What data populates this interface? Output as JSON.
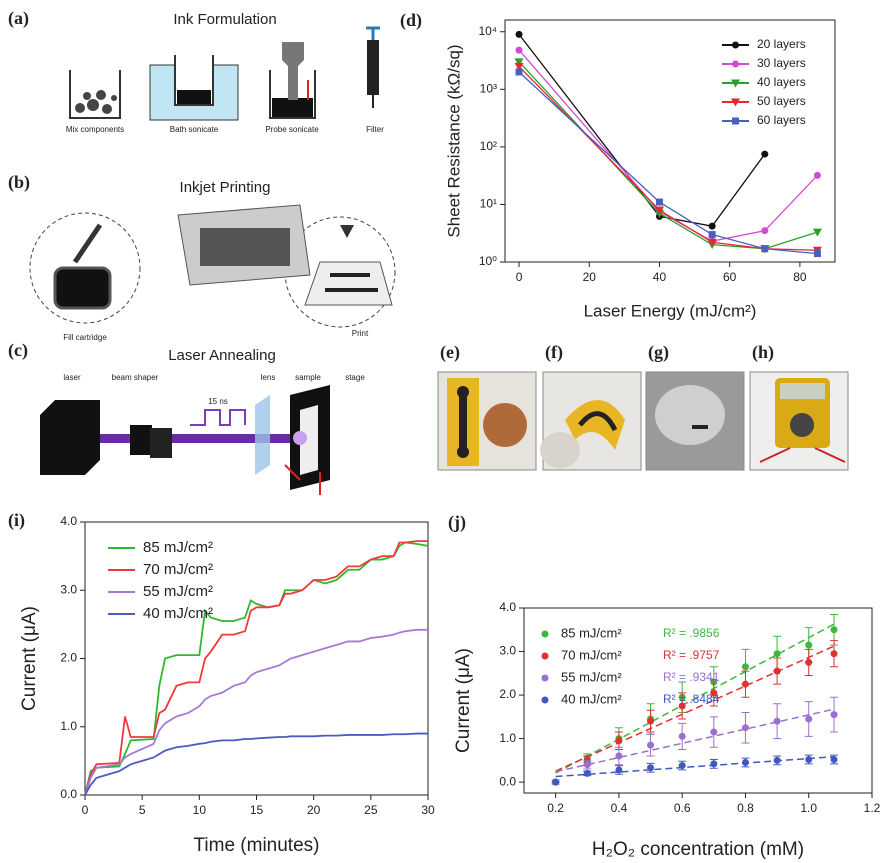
{
  "panel_labels": [
    "(a)",
    "(b)",
    "(c)",
    "(d)",
    "(e)",
    "(f)",
    "(g)",
    "(h)",
    "(i)",
    "(j)"
  ],
  "diagrams": [
    {
      "title": "Ink Formulation",
      "labels": [
        "Mix components",
        "Bath sonicate",
        "Probe sonicate",
        "Filter"
      ]
    },
    {
      "title": "Inkjet Printing",
      "labels": [
        "Fill cartridge",
        "Print"
      ]
    },
    {
      "title": "Laser Annealing",
      "labels": [
        "laser",
        "beam shaper",
        "15 ns",
        "lens",
        "sample",
        "stage"
      ]
    }
  ],
  "chart_data": [
    {
      "type": "line",
      "log_y": true,
      "markers": [
        "circle",
        "circle",
        "triangle-down",
        "triangle-down",
        "square"
      ],
      "ylabel": "Sheet Resistance (kΩ/sq)",
      "xlabel": "Laser Energy (mJ/cm²)",
      "legend": "upper-right",
      "x": [
        0,
        40,
        55,
        70,
        85
      ],
      "series": [
        {
          "name": "20 layers",
          "color": "#111111",
          "values": [
            9000,
            6.2,
            4.2,
            75,
            null
          ]
        },
        {
          "name": "30 layers",
          "color": "#d24bd2",
          "values": [
            4800,
            7.5,
            2.3,
            3.5,
            32
          ]
        },
        {
          "name": "40 layers",
          "color": "#2ca02c",
          "values": [
            3000,
            7,
            2.0,
            1.7,
            3.3
          ]
        },
        {
          "name": "50 layers",
          "color": "#e8262b",
          "values": [
            2500,
            8,
            2.2,
            1.7,
            1.6
          ]
        },
        {
          "name": "60 layers",
          "color": "#4a5fc4",
          "values": [
            2000,
            11,
            3.0,
            1.7,
            1.4
          ]
        }
      ],
      "xlim": [
        -4,
        90
      ],
      "ylim": [
        1,
        16000
      ],
      "xticks": [
        0,
        20,
        40,
        60,
        80
      ],
      "yticks": [
        {
          "value": 1,
          "label": "10⁰"
        },
        {
          "value": 10,
          "label": "10¹"
        },
        {
          "value": 100,
          "label": "10²"
        },
        {
          "value": 1000,
          "label": "10³"
        },
        {
          "value": 10000,
          "label": "10⁴"
        }
      ]
    },
    {
      "type": "line",
      "ylabel": "Current (μA)",
      "xlabel": "Time (minutes)",
      "legend": "upper-left",
      "x": [
        0,
        0.5,
        1,
        3,
        3.5,
        4,
        6,
        6.5,
        7,
        8,
        9,
        10,
        10.5,
        11,
        12,
        13,
        14,
        14.5,
        15,
        16,
        17,
        17.5,
        18,
        19,
        20,
        21,
        22,
        23,
        24,
        25,
        26,
        27,
        27.5,
        28,
        29,
        30
      ],
      "series": [
        {
          "name": "85 mJ/cm²",
          "color": "#2fb82f",
          "values": [
            0,
            0.35,
            0.4,
            0.42,
            0.6,
            0.8,
            0.82,
            1.6,
            2.0,
            2.05,
            2.05,
            2.05,
            2.7,
            2.6,
            2.55,
            2.55,
            2.6,
            2.85,
            2.8,
            2.75,
            2.78,
            3.0,
            3.0,
            3.0,
            3.15,
            3.1,
            3.15,
            3.3,
            3.3,
            3.45,
            3.45,
            3.5,
            3.65,
            3.7,
            3.68,
            3.65
          ]
        },
        {
          "name": "70 mJ/cm²",
          "color": "#ee3b3b",
          "values": [
            0,
            0.3,
            0.45,
            0.47,
            1.15,
            0.85,
            0.85,
            1.2,
            1.25,
            1.6,
            1.65,
            1.65,
            2.0,
            2.1,
            2.35,
            2.35,
            2.4,
            2.7,
            2.75,
            2.75,
            2.78,
            2.95,
            2.95,
            3.0,
            3.15,
            3.15,
            3.2,
            3.35,
            3.35,
            3.45,
            3.5,
            3.5,
            3.7,
            3.7,
            3.72,
            3.72
          ]
        },
        {
          "name": "55 mJ/cm²",
          "color": "#a67ad6",
          "values": [
            0,
            0.25,
            0.4,
            0.45,
            0.55,
            0.6,
            0.75,
            0.95,
            1.05,
            1.15,
            1.2,
            1.3,
            1.4,
            1.45,
            1.5,
            1.6,
            1.65,
            1.75,
            1.8,
            1.85,
            1.9,
            1.95,
            2.0,
            2.05,
            2.1,
            2.15,
            2.2,
            2.25,
            2.25,
            2.3,
            2.32,
            2.35,
            2.38,
            2.4,
            2.42,
            2.42
          ]
        },
        {
          "name": "40 mJ/cm²",
          "color": "#4a5cc0",
          "values": [
            0,
            0.15,
            0.25,
            0.35,
            0.4,
            0.45,
            0.55,
            0.6,
            0.65,
            0.7,
            0.72,
            0.75,
            0.76,
            0.78,
            0.8,
            0.8,
            0.82,
            0.82,
            0.83,
            0.84,
            0.85,
            0.85,
            0.86,
            0.86,
            0.86,
            0.87,
            0.87,
            0.88,
            0.88,
            0.88,
            0.88,
            0.89,
            0.89,
            0.89,
            0.9,
            0.9
          ]
        }
      ],
      "xlim": [
        0,
        30
      ],
      "ylim": [
        0,
        4
      ],
      "xticks": [
        0,
        5,
        10,
        15,
        20,
        25,
        30
      ],
      "yticks": [
        {
          "value": 0,
          "label": "0.0"
        },
        {
          "value": 1,
          "label": "1.0"
        },
        {
          "value": 2,
          "label": "2.0"
        },
        {
          "value": 3,
          "label": "3.0"
        },
        {
          "value": 4,
          "label": "4.0"
        }
      ]
    },
    {
      "type": "scatter",
      "fit_lines": true,
      "ylabel": "Current (μA)",
      "xlabel": "H₂O₂ concentration (mM)",
      "legend": "upper-left",
      "x": [
        0.2,
        0.3,
        0.4,
        0.5,
        0.6,
        0.7,
        0.8,
        0.9,
        1.0,
        1.08
      ],
      "series": [
        {
          "name": "85 mJ/cm²",
          "r2_label": "R² = .9856",
          "color": "#3cb83c",
          "values": [
            0,
            0.55,
            1.0,
            1.45,
            1.95,
            2.3,
            2.65,
            2.95,
            3.15,
            3.5
          ],
          "errors": [
            0.05,
            0.1,
            0.25,
            0.35,
            0.35,
            0.35,
            0.4,
            0.4,
            0.4,
            0.35
          ]
        },
        {
          "name": "70 mJ/cm²",
          "r2_label": "R² = .9757",
          "color": "#e03030",
          "values": [
            0,
            0.5,
            0.95,
            1.4,
            1.75,
            2.05,
            2.25,
            2.55,
            2.75,
            2.95
          ],
          "errors": [
            0,
            0.1,
            0.2,
            0.25,
            0.3,
            0.3,
            0.3,
            0.3,
            0.3,
            0.3
          ]
        },
        {
          "name": "55 mJ/cm²",
          "r2_label": "R² = .9341",
          "color": "#9b6fd0",
          "values": [
            0,
            0.4,
            0.6,
            0.85,
            1.05,
            1.15,
            1.25,
            1.4,
            1.45,
            1.55
          ],
          "errors": [
            0,
            0.1,
            0.2,
            0.25,
            0.3,
            0.35,
            0.35,
            0.4,
            0.4,
            0.4
          ]
        },
        {
          "name": "40 mJ/cm²",
          "r2_label": "R² = .8484",
          "color": "#4058c0",
          "values": [
            0,
            0.2,
            0.28,
            0.33,
            0.38,
            0.42,
            0.45,
            0.5,
            0.52,
            0.52
          ],
          "errors": [
            0,
            0.05,
            0.1,
            0.1,
            0.1,
            0.1,
            0.1,
            0.1,
            0.1,
            0.1
          ]
        }
      ],
      "xlim": [
        0.1,
        1.2
      ],
      "ylim": [
        -0.25,
        4
      ],
      "xticks": [
        0.2,
        0.4,
        0.6,
        0.8,
        {
          "value": 1,
          "label": "1.0"
        },
        1.2
      ],
      "yticks": [
        {
          "value": 0,
          "label": "0.0"
        },
        {
          "value": 1,
          "label": "1.0"
        },
        {
          "value": 2,
          "label": "2.0"
        },
        {
          "value": 3,
          "label": "3.0"
        },
        {
          "value": 4,
          "label": "4.0"
        }
      ]
    }
  ]
}
